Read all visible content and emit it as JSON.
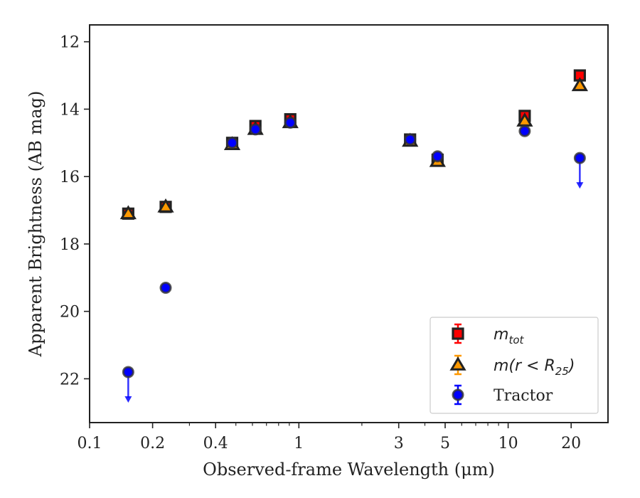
{
  "chart_data": {
    "type": "scatter",
    "title": "",
    "xlabel": "Observed-frame Wavelength (μm)",
    "ylabel": "Apparent Brightness (AB mag)",
    "xscale": "log",
    "xlim": [
      0.1,
      30
    ],
    "ylim": [
      23.3,
      11.5
    ],
    "y_inverted": true,
    "x_ticks": [
      0.1,
      0.2,
      0.4,
      1,
      3,
      5,
      10,
      20
    ],
    "x_tick_labels": [
      "0.1",
      "0.2",
      "0.4",
      "1",
      "3",
      "5",
      "10",
      "20"
    ],
    "y_ticks": [
      12,
      14,
      16,
      18,
      20,
      22
    ],
    "y_tick_labels": [
      "12",
      "14",
      "16",
      "18",
      "20",
      "22"
    ],
    "grid": false,
    "legend_position": "lower-right",
    "series": [
      {
        "name": "m_tot",
        "marker": "square",
        "color": "#ff0000",
        "edge_color": "#222222",
        "points": [
          {
            "x": 0.153,
            "y": 17.1
          },
          {
            "x": 0.231,
            "y": 16.9
          },
          {
            "x": 0.48,
            "y": 15.0
          },
          {
            "x": 0.62,
            "y": 14.5
          },
          {
            "x": 0.91,
            "y": 14.3
          },
          {
            "x": 3.4,
            "y": 14.9
          },
          {
            "x": 4.6,
            "y": 15.5
          },
          {
            "x": 12.0,
            "y": 14.2
          },
          {
            "x": 22.0,
            "y": 13.0
          }
        ]
      },
      {
        "name": "m(r < R_25)",
        "marker": "triangle",
        "color": "#ff9900",
        "edge_color": "#222222",
        "points": [
          {
            "x": 0.153,
            "y": 17.1
          },
          {
            "x": 0.231,
            "y": 16.9
          },
          {
            "x": 0.48,
            "y": 15.05
          },
          {
            "x": 0.62,
            "y": 14.6
          },
          {
            "x": 0.91,
            "y": 14.4
          },
          {
            "x": 3.4,
            "y": 14.95
          },
          {
            "x": 4.6,
            "y": 15.55
          },
          {
            "x": 12.0,
            "y": 14.35
          },
          {
            "x": 22.0,
            "y": 13.3
          }
        ]
      },
      {
        "name": "Tractor",
        "marker": "circle",
        "color": "#0000ff",
        "edge_color": "#333333",
        "points": [
          {
            "x": 0.153,
            "y": 21.8,
            "upper_limit": true
          },
          {
            "x": 0.231,
            "y": 19.3
          },
          {
            "x": 0.48,
            "y": 15.0
          },
          {
            "x": 0.62,
            "y": 14.6
          },
          {
            "x": 0.91,
            "y": 14.4
          },
          {
            "x": 3.4,
            "y": 14.9
          },
          {
            "x": 4.6,
            "y": 15.4
          },
          {
            "x": 12.0,
            "y": 14.65
          },
          {
            "x": 22.0,
            "y": 15.45,
            "upper_limit": true
          }
        ]
      }
    ],
    "legend": {
      "entries": [
        {
          "series": 0,
          "math": "m",
          "sub": "tot",
          "tail": ""
        },
        {
          "series": 1,
          "math": "m(r < R",
          "sub": "25",
          "tail": ")"
        },
        {
          "series": 2,
          "text": "Tractor"
        }
      ]
    }
  }
}
